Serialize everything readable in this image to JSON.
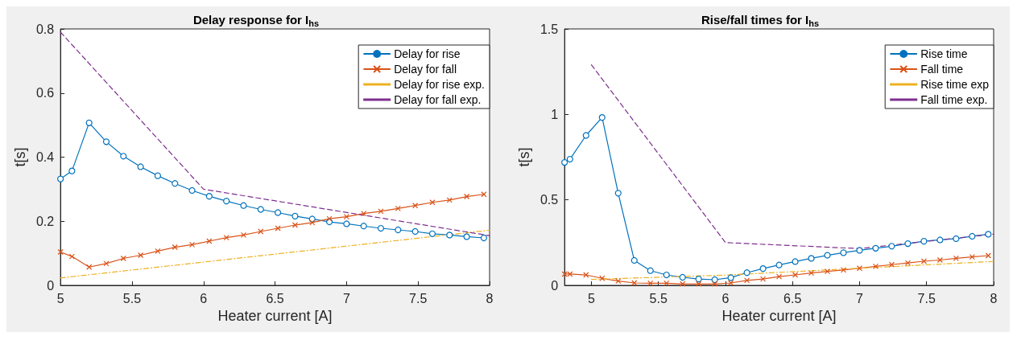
{
  "chart_data": [
    {
      "type": "line",
      "title": "Delay response for I$_{hs}$",
      "xlabel": "Heater current [A]",
      "ylabel": "t[s]",
      "xlim": [
        5,
        8
      ],
      "xticks": [
        5,
        5.5,
        6,
        6.5,
        7,
        7.5,
        8
      ],
      "ylim": [
        0,
        0.8
      ],
      "yticks": [
        0,
        0.2,
        0.4,
        0.6,
        0.8
      ],
      "legend": "top right",
      "series": [
        {
          "name": "Delay for rise",
          "color": "#0072bd",
          "marker": "circle",
          "line_style": "solid",
          "x": [
            5,
            5.08,
            5.2,
            5.32,
            5.44,
            5.56,
            5.68,
            5.8,
            5.92,
            6.04,
            6.16,
            6.28,
            6.4,
            6.52,
            6.64,
            6.76,
            6.88,
            7,
            7.12,
            7.24,
            7.36,
            7.48,
            7.6,
            7.72,
            7.84,
            7.96
          ],
          "values": [
            0.332,
            0.357,
            0.507,
            0.448,
            0.403,
            0.37,
            0.342,
            0.318,
            0.296,
            0.278,
            0.263,
            0.249,
            0.237,
            0.227,
            0.216,
            0.207,
            0.198,
            0.192,
            0.185,
            0.178,
            0.173,
            0.168,
            0.161,
            0.157,
            0.152,
            0.148
          ]
        },
        {
          "name": "Delay for fall",
          "color": "#d95319",
          "marker": "cross",
          "line_style": "solid",
          "x": [
            5,
            5.08,
            5.2,
            5.32,
            5.44,
            5.56,
            5.68,
            5.8,
            5.92,
            6.04,
            6.16,
            6.28,
            6.4,
            6.52,
            6.64,
            6.76,
            6.88,
            7,
            7.12,
            7.24,
            7.36,
            7.48,
            7.6,
            7.72,
            7.84,
            7.96
          ],
          "values": [
            0.104,
            0.09,
            0.057,
            0.068,
            0.084,
            0.094,
            0.107,
            0.119,
            0.127,
            0.138,
            0.149,
            0.157,
            0.168,
            0.178,
            0.188,
            0.196,
            0.208,
            0.214,
            0.224,
            0.231,
            0.24,
            0.249,
            0.259,
            0.266,
            0.277,
            0.284
          ]
        },
        {
          "name": "Delay for rise exp.",
          "color": "#edb120",
          "marker": "none",
          "line_style": "dashdot",
          "x": [
            5,
            8
          ],
          "values": [
            0.023,
            0.172
          ]
        },
        {
          "name": "Delay for fall exp.",
          "color": "#7e2f8e",
          "marker": "none",
          "line_style": "dashed",
          "x": [
            5,
            6,
            8
          ],
          "values": [
            0.79,
            0.3,
            0.155
          ]
        }
      ]
    },
    {
      "type": "line",
      "title": "Rise/fall times for I$_{hs}$",
      "xlabel": "Heater current [A]",
      "ylabel": "t[s]",
      "xlim": [
        4.8,
        8
      ],
      "xticks": [
        5,
        5.5,
        6,
        6.5,
        7,
        7.5,
        8
      ],
      "ylim": [
        0,
        1.5
      ],
      "yticks": [
        0,
        0.5,
        1,
        1.5
      ],
      "legend": "top right",
      "series": [
        {
          "name": "Rise time",
          "color": "#0072bd",
          "marker": "circle",
          "line_style": "solid",
          "x": [
            4.8,
            4.84,
            4.96,
            5.08,
            5.2,
            5.32,
            5.44,
            5.56,
            5.68,
            5.8,
            5.92,
            6.04,
            6.16,
            6.28,
            6.4,
            6.52,
            6.64,
            6.76,
            6.88,
            7,
            7.12,
            7.24,
            7.36,
            7.48,
            7.6,
            7.72,
            7.84,
            7.96
          ],
          "values": [
            0.719,
            0.738,
            0.877,
            0.982,
            0.539,
            0.146,
            0.086,
            0.061,
            0.047,
            0.037,
            0.033,
            0.045,
            0.074,
            0.098,
            0.119,
            0.139,
            0.158,
            0.176,
            0.191,
            0.205,
            0.217,
            0.229,
            0.244,
            0.258,
            0.266,
            0.273,
            0.287,
            0.299
          ]
        },
        {
          "name": "Fall time",
          "color": "#d95319",
          "marker": "cross",
          "line_style": "solid",
          "x": [
            4.8,
            4.84,
            4.96,
            5.08,
            5.2,
            5.32,
            5.44,
            5.56,
            5.68,
            5.8,
            5.92,
            6.04,
            6.16,
            6.28,
            6.4,
            6.52,
            6.64,
            6.76,
            6.88,
            7,
            7.12,
            7.24,
            7.36,
            7.48,
            7.6,
            7.72,
            7.84,
            7.96
          ],
          "values": [
            0.066,
            0.066,
            0.061,
            0.041,
            0.025,
            0.014,
            0.012,
            0.012,
            0.008,
            0.008,
            0.008,
            0.014,
            0.029,
            0.037,
            0.051,
            0.061,
            0.072,
            0.082,
            0.09,
            0.1,
            0.111,
            0.121,
            0.131,
            0.141,
            0.148,
            0.158,
            0.166,
            0.174
          ]
        },
        {
          "name": "Rise time exp",
          "color": "#edb120",
          "marker": "none",
          "line_style": "dashdot",
          "x": [
            5,
            6,
            8
          ],
          "values": [
            0.035,
            0.06,
            0.14
          ]
        },
        {
          "name": "Fall time exp.",
          "color": "#7e2f8e",
          "marker": "none",
          "line_style": "dashed",
          "x": [
            5,
            6,
            7,
            8
          ],
          "values": [
            1.29,
            0.25,
            0.215,
            0.3
          ]
        }
      ]
    }
  ]
}
